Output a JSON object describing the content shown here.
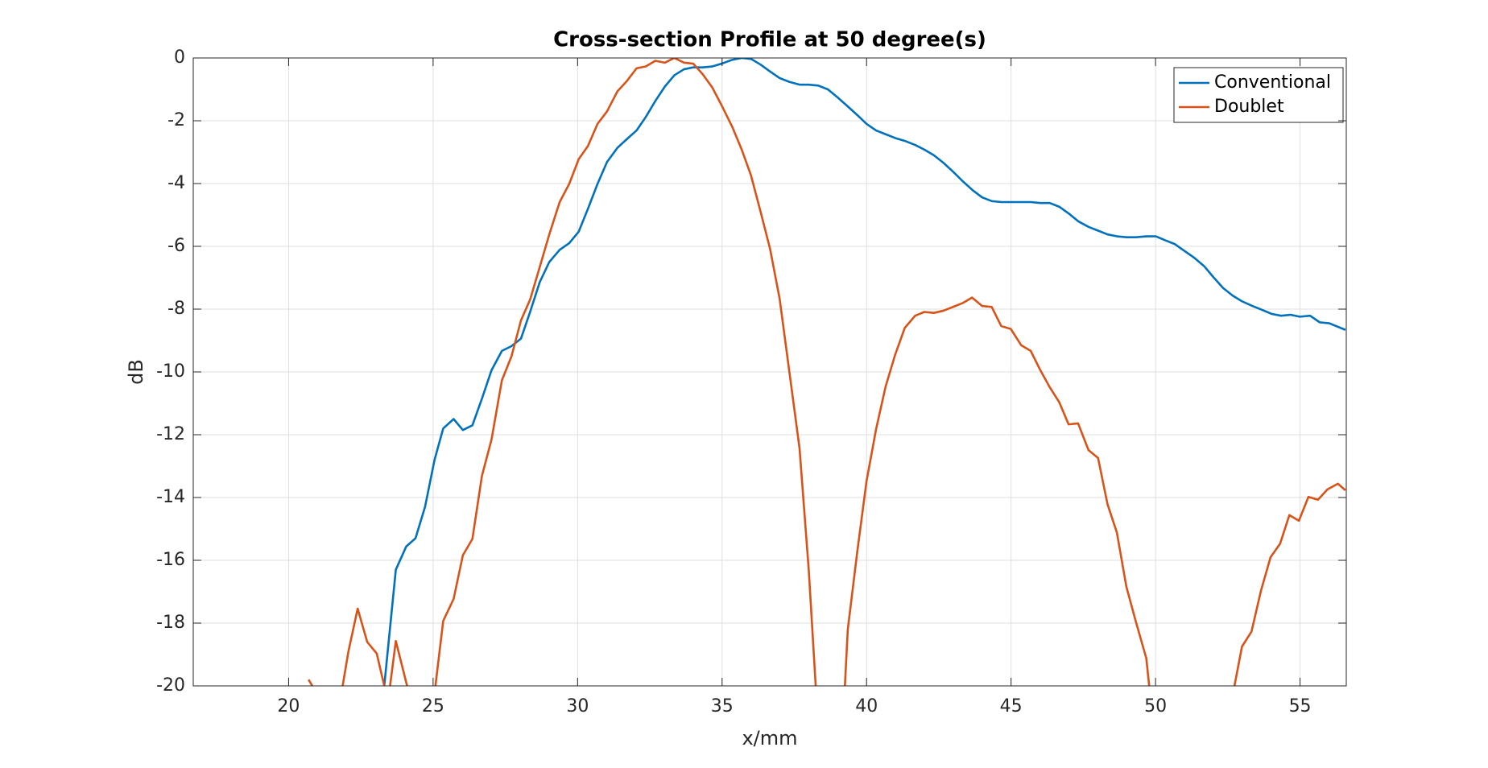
{
  "chart_data": {
    "type": "line",
    "title": "Cross-section Profile at 50 degree(s)",
    "x_label": "x/mm",
    "y_label": "dB",
    "xlim": [
      16.7,
      56.6
    ],
    "ylim": [
      -20,
      0
    ],
    "xticks": [
      20,
      25,
      30,
      35,
      40,
      45,
      50,
      55
    ],
    "yticks": [
      0,
      -2,
      -4,
      -6,
      -8,
      -10,
      -12,
      -14,
      -16,
      -18,
      -20
    ],
    "grid": true,
    "legend": "northeast",
    "series": [
      {
        "name": "Conventional",
        "color": "#0072bd",
        "x": [
          23.31,
          23.71,
          24.07,
          24.39,
          24.72,
          25.05,
          25.35,
          25.71,
          26.03,
          26.36,
          26.69,
          27.02,
          27.38,
          27.71,
          28.04,
          28.36,
          28.69,
          29.02,
          29.38,
          29.71,
          30.04,
          30.36,
          30.69,
          31.02,
          31.38,
          31.71,
          32.04,
          32.36,
          32.69,
          33.02,
          33.35,
          33.68,
          34.0,
          34.33,
          34.66,
          34.99,
          35.35,
          35.68,
          36.0,
          36.33,
          36.66,
          36.99,
          37.32,
          37.68,
          38.0,
          38.33,
          38.66,
          38.99,
          39.32,
          39.68,
          40.0,
          40.33,
          40.66,
          40.99,
          41.32,
          41.68,
          42.0,
          42.33,
          42.66,
          42.99,
          43.32,
          43.68,
          44.0,
          44.33,
          44.66,
          44.99,
          45.35,
          45.68,
          46.01,
          46.34,
          46.67,
          46.99,
          47.32,
          47.68,
          48.01,
          48.34,
          48.66,
          48.99,
          49.32,
          49.68,
          50.01,
          50.34,
          50.67,
          50.99,
          51.32,
          51.68,
          52.01,
          52.34,
          52.67,
          52.99,
          53.35,
          53.68,
          54.01,
          54.34,
          54.67,
          54.99,
          55.35,
          55.68,
          56.01,
          56.57
        ],
        "values": [
          -20,
          -16.3,
          -15.56,
          -15.3,
          -14.3,
          -12.8,
          -11.8,
          -11.5,
          -11.85,
          -11.7,
          -10.85,
          -9.95,
          -9.33,
          -9.18,
          -8.94,
          -8.08,
          -7.14,
          -6.5,
          -6.11,
          -5.9,
          -5.53,
          -4.8,
          -4.01,
          -3.31,
          -2.86,
          -2.58,
          -2.31,
          -1.88,
          -1.37,
          -0.91,
          -0.55,
          -0.36,
          -0.3,
          -0.3,
          -0.27,
          -0.18,
          -0.06,
          0,
          -0.03,
          -0.21,
          -0.43,
          -0.64,
          -0.76,
          -0.85,
          -0.85,
          -0.88,
          -1.0,
          -1.25,
          -1.52,
          -1.82,
          -2.1,
          -2.31,
          -2.43,
          -2.55,
          -2.64,
          -2.77,
          -2.92,
          -3.1,
          -3.34,
          -3.62,
          -3.92,
          -4.22,
          -4.44,
          -4.56,
          -4.59,
          -4.59,
          -4.59,
          -4.59,
          -4.62,
          -4.62,
          -4.74,
          -4.95,
          -5.2,
          -5.38,
          -5.5,
          -5.62,
          -5.68,
          -5.71,
          -5.71,
          -5.68,
          -5.68,
          -5.81,
          -5.93,
          -6.14,
          -6.35,
          -6.63,
          -6.99,
          -7.33,
          -7.57,
          -7.75,
          -7.9,
          -8.02,
          -8.15,
          -8.21,
          -8.18,
          -8.24,
          -8.21,
          -8.42,
          -8.45,
          -8.66
        ]
      },
      {
        "name": "Doublet",
        "color": "#d95319",
        "x": [
          20.69,
          20.82,
          null,
          21.87,
          22.07,
          22.39,
          22.72,
          23.05,
          23.31,
          null,
          23.51,
          23.71,
          24.1,
          null,
          25.08,
          25.35,
          25.71,
          26.03,
          26.36,
          26.69,
          27.02,
          27.38,
          27.71,
          28.04,
          28.36,
          28.69,
          29.02,
          29.38,
          29.71,
          30.04,
          30.36,
          30.69,
          31.02,
          31.38,
          31.71,
          32.04,
          32.36,
          32.69,
          33.02,
          33.35,
          33.68,
          34.0,
          34.33,
          34.66,
          34.99,
          35.35,
          35.68,
          36.0,
          36.33,
          36.66,
          36.99,
          37.32,
          37.68,
          38.0,
          38.24,
          null,
          39.25,
          39.35,
          39.68,
          40.0,
          40.33,
          40.66,
          40.99,
          41.32,
          41.68,
          42.0,
          42.33,
          42.66,
          42.99,
          43.32,
          43.65,
          44.0,
          44.33,
          44.66,
          44.99,
          45.35,
          45.68,
          46.01,
          46.34,
          46.67,
          46.99,
          47.32,
          47.68,
          48.01,
          48.34,
          48.66,
          48.99,
          49.32,
          49.68,
          49.78,
          null,
          52.73,
          52.99,
          53.32,
          53.65,
          53.98,
          54.31,
          54.63,
          54.96,
          55.29,
          55.62,
          55.95,
          56.31,
          56.57
        ],
        "values": [
          -19.8,
          -20,
          null,
          -20,
          -18.9,
          -17.54,
          -18.6,
          -18.97,
          -20,
          null,
          -20,
          -18.57,
          -20,
          null,
          -20,
          -17.93,
          -17.23,
          -15.84,
          -15.32,
          -13.31,
          -12.16,
          -10.27,
          -9.51,
          -8.36,
          -7.69,
          -6.66,
          -5.62,
          -4.59,
          -4.01,
          -3.22,
          -2.8,
          -2.1,
          -1.7,
          -1.06,
          -0.73,
          -0.33,
          -0.27,
          -0.09,
          -0.15,
          0,
          -0.15,
          -0.18,
          -0.52,
          -0.94,
          -1.52,
          -2.19,
          -2.92,
          -3.74,
          -4.89,
          -6.08,
          -7.66,
          -9.94,
          -12.43,
          -16.32,
          -20,
          null,
          -20,
          -18.2,
          -15.71,
          -13.47,
          -11.82,
          -10.46,
          -9.45,
          -8.6,
          -8.21,
          -8.09,
          -8.12,
          -8.05,
          -7.93,
          -7.81,
          -7.63,
          -7.9,
          -7.93,
          -8.54,
          -8.63,
          -9.15,
          -9.33,
          -9.94,
          -10.49,
          -10.97,
          -11.67,
          -11.64,
          -12.49,
          -12.74,
          -14.22,
          -15.11,
          -16.84,
          -17.96,
          -19.12,
          -20,
          null,
          -20,
          -18.75,
          -18.27,
          -16.96,
          -15.9,
          -15.47,
          -14.56,
          -14.74,
          -13.98,
          -14.07,
          -13.74,
          -13.56,
          -13.77
        ]
      }
    ]
  }
}
